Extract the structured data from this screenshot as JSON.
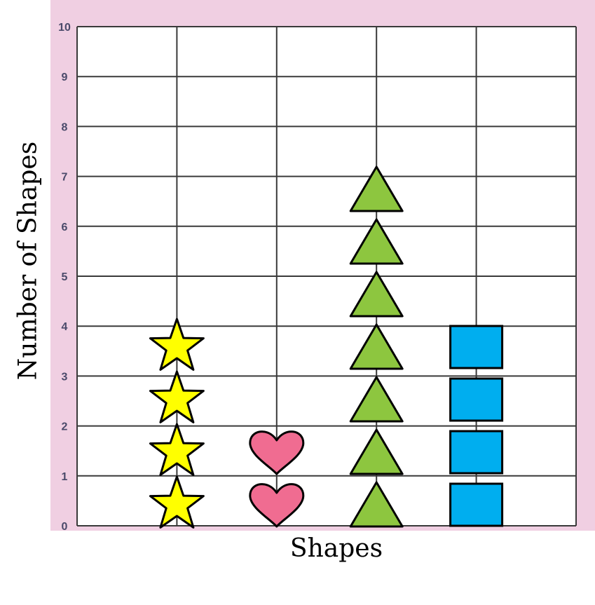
{
  "chart_data": {
    "type": "bar",
    "style": "pictograph",
    "categories": [
      "Star",
      "Heart",
      "Triangle",
      "Square"
    ],
    "values": [
      4,
      2,
      7,
      4
    ],
    "icons": [
      "star-icon",
      "heart-icon",
      "triangle-icon",
      "square-icon"
    ],
    "colors": {
      "star": "#ffff00",
      "heart": "#f06c91",
      "triangle": "#8dc63f",
      "square": "#00aeef",
      "background": "#f0cfe2",
      "grid": "#3a3a3a",
      "tick_text": "#4a4a6a"
    },
    "xlabel": "Shapes",
    "ylabel": "Number of Shapes",
    "ylim": [
      0,
      10
    ],
    "yticks": [
      "0",
      "1",
      "2",
      "3",
      "4",
      "5",
      "6",
      "7",
      "8",
      "9",
      "10"
    ],
    "grid": true
  }
}
